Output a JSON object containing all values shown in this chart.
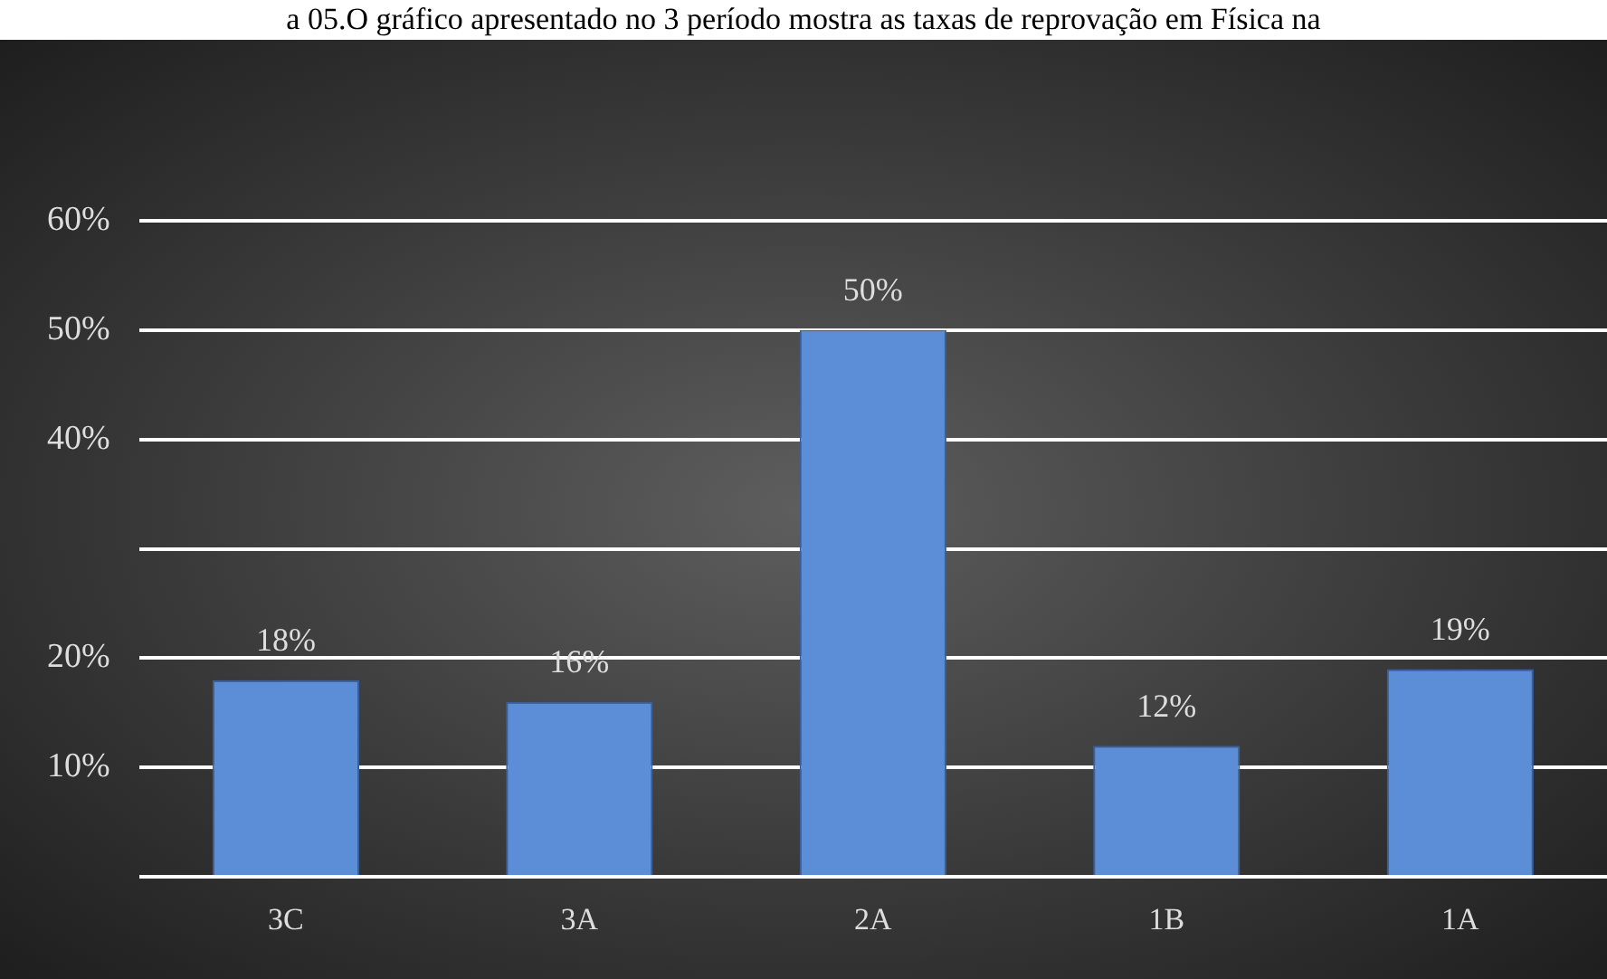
{
  "chart_data": {
    "type": "bar",
    "title": "a 05.O gráfico apresentado no 3 período mostra as taxas de reprovação em Física na",
    "categories": [
      "3C",
      "3A",
      "2A",
      "1B",
      "1A"
    ],
    "values": [
      18,
      16,
      50,
      12,
      19
    ],
    "value_labels": [
      "18%",
      "16%",
      "50%",
      "12%",
      "19%"
    ],
    "color": "#5b8ed6",
    "ylim": [
      0,
      60
    ],
    "yticks": [
      {
        "value": 0,
        "label": null
      },
      {
        "value": 10,
        "label": "10%"
      },
      {
        "value": 20,
        "label": "20%"
      },
      {
        "value": 30,
        "label": null
      },
      {
        "value": 40,
        "label": "40%"
      },
      {
        "value": 50,
        "label": "50%"
      },
      {
        "value": 60,
        "label": "60%"
      }
    ],
    "grid": "y"
  }
}
